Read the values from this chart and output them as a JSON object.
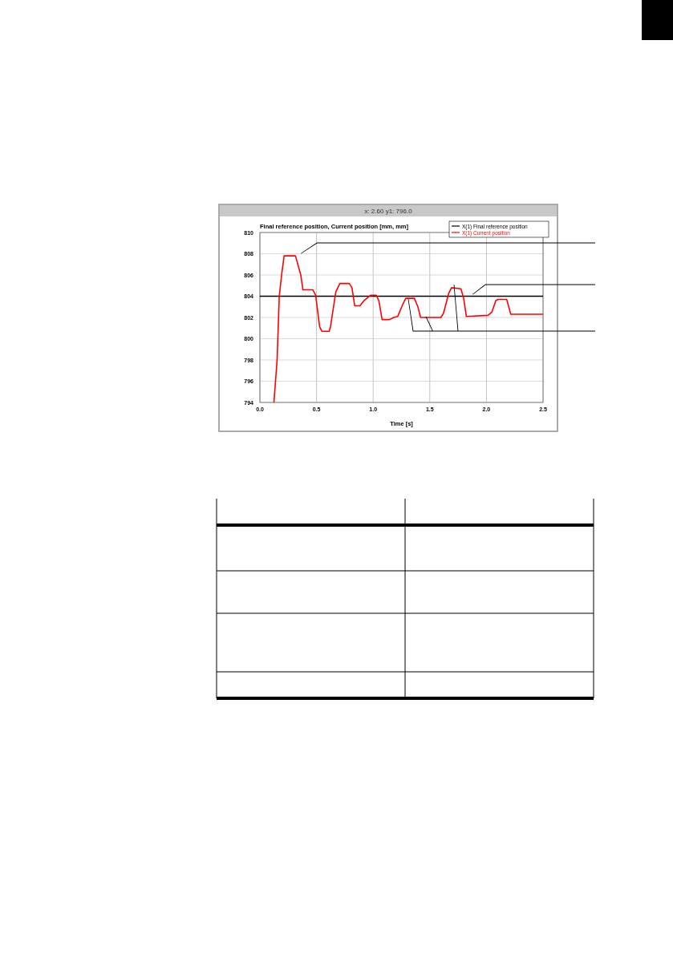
{
  "chart_data": {
    "type": "line",
    "title": "Final reference position, Current position [mm, mm]",
    "xlabel": "Time [s]",
    "annotations": [
      "x: 2.60 y1: 796.0"
    ],
    "xlim": [
      0,
      2.5
    ],
    "xticks": [
      {
        "value": 0,
        "label": "0.0"
      },
      {
        "value": 0.5,
        "label": "0.5"
      },
      {
        "value": 1,
        "label": "1.0"
      },
      {
        "value": 1.5,
        "label": "1.5"
      },
      {
        "value": 2,
        "label": "2.0"
      },
      {
        "value": 2.5,
        "label": "2.5"
      }
    ],
    "ylim": [
      794,
      810
    ],
    "yticks": [
      794,
      796,
      798,
      800,
      802,
      804,
      806,
      808,
      810
    ],
    "grid": true,
    "legend": "top right",
    "marker": "none",
    "line_style": "solid",
    "series": [
      {
        "name": "X(1) Final reference position",
        "color": "#000000",
        "x": [
          0,
          2.5
        ],
        "values": [
          804,
          804
        ]
      },
      {
        "name": "X(1) Current position",
        "color": "#ff0000",
        "x": [
          0.124,
          0.152,
          0.171,
          0.195,
          0.214,
          0.314,
          0.361,
          0.38,
          0.468,
          0.492,
          0.528,
          0.547,
          0.611,
          0.623,
          0.67,
          0.706,
          0.789,
          0.813,
          0.837,
          0.884,
          0.92,
          0.955,
          0.979,
          1.027,
          1.05,
          1.079,
          1.145,
          1.181,
          1.217,
          1.264,
          1.288,
          1.364,
          1.395,
          1.419,
          1.597,
          1.621,
          1.668,
          1.692,
          1.775,
          1.799,
          1.823,
          2.013,
          2.048,
          2.084,
          2.103,
          2.179,
          2.215,
          2.5
        ],
        "values": [
          794,
          798,
          804,
          806.3,
          807.8,
          807.8,
          806,
          804.6,
          804.6,
          804.1,
          801.1,
          800.7,
          800.7,
          801.1,
          804.4,
          805.2,
          805.2,
          804.8,
          803.1,
          803.1,
          803.6,
          803.9,
          804.1,
          804.1,
          803.6,
          801.8,
          801.8,
          802,
          802.1,
          803.3,
          803.8,
          803.8,
          803,
          802,
          802,
          802.4,
          804.3,
          804.8,
          804.7,
          803.8,
          802.1,
          802.2,
          802.5,
          803.6,
          803.7,
          803.7,
          802.3,
          802.3
        ]
      }
    ]
  }
}
